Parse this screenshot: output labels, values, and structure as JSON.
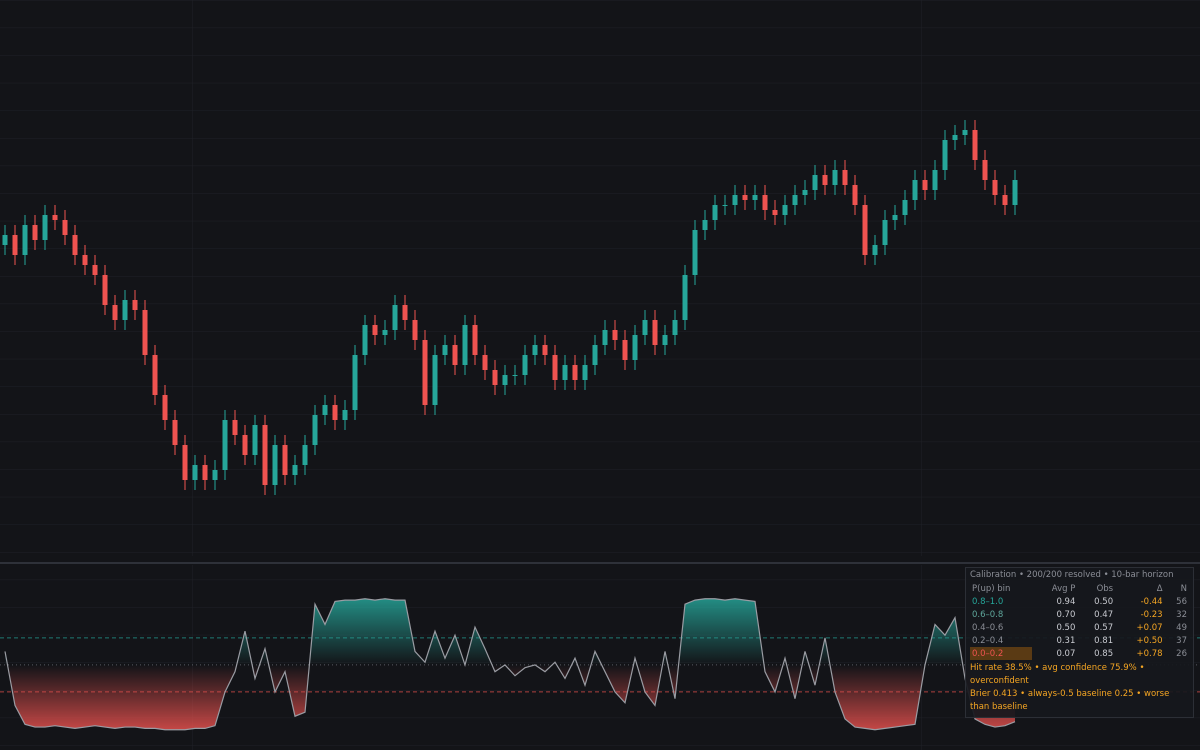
{
  "chart_data": [
    {
      "type": "candlestick",
      "ylim": [
        0,
        111
      ],
      "up_color": "#26a69a",
      "down_color": "#ef5350",
      "open": [
        62,
        64,
        60,
        66,
        63,
        68,
        67,
        64,
        60,
        58,
        56,
        50,
        47,
        51,
        49,
        40,
        32,
        27,
        22,
        15,
        18,
        15,
        17,
        27,
        24,
        20,
        26,
        14,
        22,
        16,
        18,
        22,
        28,
        30,
        27,
        29,
        40,
        46,
        44,
        45,
        50,
        47,
        43,
        30,
        40,
        42,
        38,
        46,
        40,
        37,
        34,
        36,
        36,
        40,
        42,
        40,
        35,
        38,
        35,
        38,
        42,
        45,
        43,
        39,
        44,
        47,
        42,
        44,
        47,
        56,
        65,
        67,
        70,
        70,
        72,
        71,
        72,
        69,
        68,
        70,
        72,
        73,
        76,
        74,
        77,
        74,
        70,
        60,
        62,
        67,
        68,
        71,
        75,
        73,
        77,
        83,
        84,
        85,
        79,
        75,
        72,
        70
      ],
      "high": [
        66,
        66,
        68,
        68,
        70,
        70,
        69,
        66,
        62,
        60,
        58,
        52,
        53,
        53,
        51,
        42,
        34,
        29,
        24,
        20,
        20,
        19,
        29,
        29,
        26,
        28,
        28,
        24,
        24,
        20,
        24,
        30,
        32,
        32,
        31,
        42,
        48,
        48,
        47,
        52,
        52,
        49,
        45,
        42,
        44,
        44,
        48,
        48,
        42,
        39,
        38,
        38,
        42,
        44,
        44,
        42,
        40,
        40,
        40,
        44,
        47,
        47,
        45,
        46,
        49,
        49,
        46,
        49,
        58,
        67,
        69,
        72,
        72,
        74,
        74,
        74,
        74,
        71,
        72,
        74,
        75,
        78,
        78,
        79,
        79,
        76,
        72,
        64,
        69,
        70,
        73,
        77,
        77,
        79,
        85,
        86,
        87,
        87,
        81,
        77,
        74,
        77
      ],
      "low": [
        60,
        58,
        58,
        61,
        61,
        65,
        62,
        58,
        56,
        54,
        48,
        45,
        45,
        47,
        38,
        30,
        25,
        20,
        13,
        13,
        13,
        13,
        15,
        22,
        18,
        18,
        12,
        12,
        14,
        14,
        16,
        20,
        26,
        25,
        25,
        27,
        38,
        42,
        42,
        43,
        45,
        41,
        28,
        28,
        38,
        36,
        36,
        38,
        35,
        32,
        32,
        34,
        34,
        38,
        38,
        33,
        33,
        33,
        33,
        36,
        40,
        41,
        37,
        37,
        42,
        40,
        40,
        42,
        45,
        54,
        63,
        65,
        68,
        68,
        69,
        69,
        67,
        66,
        66,
        68,
        70,
        71,
        72,
        72,
        72,
        68,
        58,
        58,
        60,
        65,
        66,
        69,
        71,
        71,
        75,
        81,
        82,
        77,
        73,
        70,
        68,
        68
      ],
      "close": [
        64,
        60,
        66,
        63,
        68,
        67,
        64,
        60,
        58,
        56,
        50,
        47,
        51,
        49,
        40,
        32,
        27,
        22,
        15,
        18,
        15,
        17,
        27,
        24,
        20,
        26,
        14,
        22,
        16,
        18,
        22,
        28,
        30,
        27,
        29,
        40,
        46,
        44,
        45,
        50,
        47,
        43,
        30,
        40,
        42,
        38,
        46,
        40,
        37,
        34,
        36,
        36,
        40,
        42,
        40,
        35,
        38,
        35,
        38,
        42,
        45,
        43,
        39,
        44,
        47,
        42,
        44,
        47,
        56,
        65,
        67,
        70,
        70,
        72,
        71,
        72,
        69,
        68,
        70,
        72,
        73,
        76,
        74,
        77,
        74,
        70,
        60,
        62,
        67,
        68,
        71,
        75,
        73,
        77,
        83,
        84,
        85,
        79,
        75,
        72,
        70,
        75
      ]
    },
    {
      "type": "line",
      "ylim": [
        -0.13,
        1.24
      ],
      "levels": [
        0.3,
        0.5,
        0.7
      ],
      "line_color": "#9a9ca3",
      "up_color": "#26a69a",
      "down_color": "#ef5350",
      "values": [
        0.6,
        0.2,
        0.06,
        0.04,
        0.04,
        0.05,
        0.04,
        0.03,
        0.04,
        0.05,
        0.04,
        0.03,
        0.04,
        0.04,
        0.03,
        0.03,
        0.02,
        0.02,
        0.02,
        0.03,
        0.03,
        0.05,
        0.3,
        0.45,
        0.75,
        0.4,
        0.62,
        0.3,
        0.45,
        0.12,
        0.15,
        0.95,
        0.8,
        0.97,
        0.98,
        0.98,
        0.99,
        0.98,
        0.99,
        0.98,
        0.98,
        0.6,
        0.52,
        0.75,
        0.55,
        0.72,
        0.5,
        0.78,
        0.62,
        0.45,
        0.5,
        0.42,
        0.48,
        0.5,
        0.45,
        0.52,
        0.4,
        0.55,
        0.35,
        0.6,
        0.45,
        0.3,
        0.22,
        0.55,
        0.3,
        0.2,
        0.6,
        0.25,
        0.95,
        0.98,
        0.99,
        0.99,
        0.98,
        0.99,
        0.98,
        0.97,
        0.45,
        0.3,
        0.55,
        0.25,
        0.6,
        0.35,
        0.7,
        0.3,
        0.1,
        0.04,
        0.03,
        0.02,
        0.03,
        0.04,
        0.05,
        0.06,
        0.5,
        0.8,
        0.72,
        0.85,
        0.4,
        0.1,
        0.06,
        0.04,
        0.05,
        0.08
      ]
    }
  ],
  "calibration": {
    "title": "Calibration • 200/200 resolved • 10-bar horizon",
    "header": [
      "P(up) bin",
      "Avg P",
      "Obs",
      "Δ",
      "N"
    ],
    "rows": [
      [
        "0.8–1.0",
        "0.94",
        "0.50",
        "-0.44",
        "56"
      ],
      [
        "0.6–0.8",
        "0.70",
        "0.47",
        "-0.23",
        "32"
      ],
      [
        "0.4–0.6",
        "0.50",
        "0.57",
        "+0.07",
        "49"
      ],
      [
        "0.2–0.4",
        "0.31",
        "0.81",
        "+0.50",
        "37"
      ],
      [
        "0.0–0.2",
        "0.07",
        "0.85",
        "+0.78",
        "26"
      ]
    ],
    "footer": [
      "Hit rate 38.5% • avg confidence 75.9% • overconfident",
      "Brier 0.413 • always-0.5 baseline 0.25 • worse than baseline"
    ]
  }
}
